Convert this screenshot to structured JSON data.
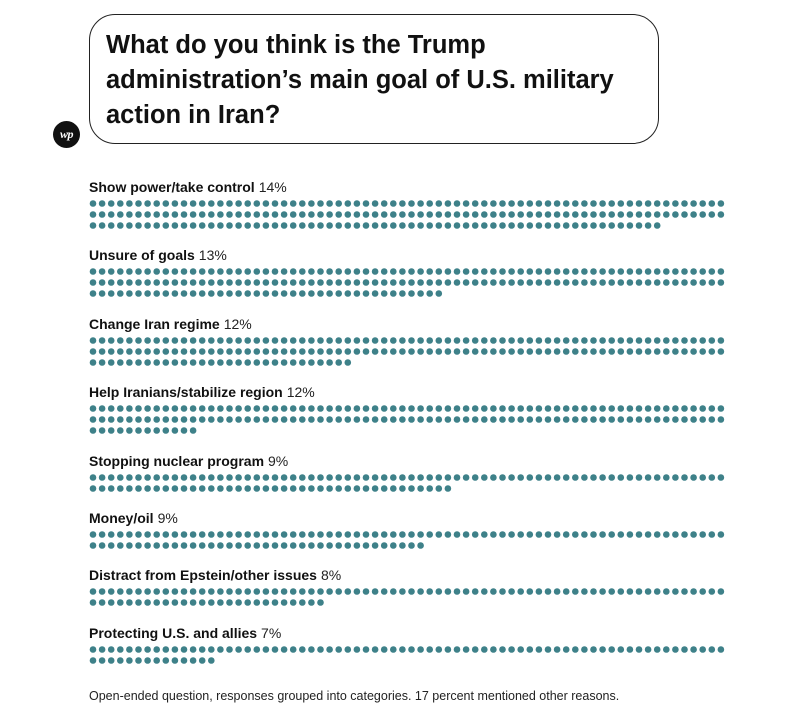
{
  "title": "What do you think is the Trump administration’s main goal of U.S. military action in Iran?",
  "logo_text": "wp",
  "dot_color": "#3e8189",
  "chart_data": {
    "type": "bar",
    "title": "What do you think is the Trump administration’s main goal of U.S. military action in Iran?",
    "unit": "percent",
    "categories": [
      "Show power/take control",
      "Unsure of goals",
      "Change Iran regime",
      "Help Iranians/stabilize region",
      "Stopping nuclear program",
      "Money/oil",
      "Distract from Epstein/other issues",
      "Protecting U.S. and allies"
    ],
    "values": [
      14,
      13,
      12,
      12,
      9,
      9,
      8,
      7
    ],
    "value_labels": [
      "14%",
      "13%",
      "12%",
      "12%",
      "9%",
      "9%",
      "8%",
      "7%"
    ],
    "dot_counts": [
      203,
      179,
      169,
      152,
      110,
      107,
      96,
      84
    ]
  },
  "footnote": "Open-ended question, responses grouped into categories. 17 percent mentioned other reasons."
}
